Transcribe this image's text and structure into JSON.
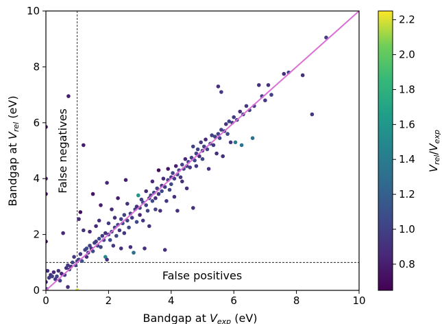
{
  "chart_data": {
    "type": "scatter",
    "xlabel": {
      "main": "Bandgap at ",
      "var": "V",
      "sub": "exp",
      "unit": " (eV)"
    },
    "ylabel": {
      "main": "Bandgap at ",
      "var": "V",
      "sub": "rel",
      "unit": " (eV)"
    },
    "xlim": [
      0,
      10
    ],
    "ylim": [
      0,
      10
    ],
    "xticks": [
      "0",
      "2",
      "4",
      "6",
      "8",
      "10"
    ],
    "yticks": [
      "0",
      "2",
      "4",
      "6",
      "8",
      "10"
    ],
    "grid": false,
    "reference_line": {
      "from": [
        0,
        0
      ],
      "to": [
        10,
        10
      ],
      "color": "#da70d6"
    },
    "threshold_x": 1,
    "threshold_y": 1,
    "annotations": {
      "false_negatives": "False negatives",
      "false_positives": "False positives"
    },
    "colorbar": {
      "label_var1": "V",
      "label_sub1": "rel",
      "label_sep": "/",
      "label_var2": "V",
      "label_sub2": "exp",
      "range": [
        0.65,
        2.25
      ],
      "ticks": [
        "0.8",
        "1.0",
        "1.2",
        "1.4",
        "1.6",
        "1.8",
        "2.0",
        "2.2"
      ],
      "colormap": "viridis"
    },
    "points": [
      [
        0.0,
        5.85,
        0.7
      ],
      [
        0.0,
        4.0,
        0.8
      ],
      [
        0.0,
        3.45,
        0.75
      ],
      [
        0.0,
        1.75,
        0.7
      ],
      [
        0.0,
        0.3,
        0.8
      ],
      [
        0.02,
        0.05,
        1.0
      ],
      [
        0.05,
        0.7,
        0.9
      ],
      [
        0.1,
        0.45,
        0.95
      ],
      [
        0.15,
        0.55,
        0.9
      ],
      [
        0.2,
        0.5,
        1.0
      ],
      [
        0.25,
        0.65,
        0.85
      ],
      [
        0.3,
        0.4,
        0.95
      ],
      [
        0.35,
        0.5,
        1.0
      ],
      [
        0.4,
        0.7,
        0.9
      ],
      [
        0.45,
        0.35,
        1.0
      ],
      [
        0.5,
        0.6,
        0.85
      ],
      [
        0.55,
        2.05,
        0.85
      ],
      [
        0.6,
        0.55,
        1.0
      ],
      [
        0.65,
        0.8,
        0.9
      ],
      [
        0.7,
        0.9,
        0.95
      ],
      [
        0.7,
        0.12,
        0.9
      ],
      [
        0.72,
        6.95,
        0.8
      ],
      [
        0.75,
        0.75,
        1.0
      ],
      [
        0.8,
        0.85,
        0.9
      ],
      [
        0.85,
        1.0,
        1.0
      ],
      [
        0.9,
        1.2,
        0.95
      ],
      [
        0.95,
        0.9,
        1.05
      ],
      [
        1.0,
        1.05,
        1.0
      ],
      [
        1.0,
        0.0,
        2.2
      ],
      [
        1.05,
        2.55,
        0.85
      ],
      [
        1.05,
        1.1,
        1.0
      ],
      [
        1.1,
        2.8,
        0.7
      ],
      [
        1.1,
        1.3,
        0.95
      ],
      [
        1.15,
        1.05,
        1.1
      ],
      [
        1.2,
        2.15,
        0.9
      ],
      [
        1.2,
        5.2,
        0.8
      ],
      [
        1.25,
        1.45,
        1.0
      ],
      [
        1.3,
        1.2,
        0.9
      ],
      [
        1.3,
        1.5,
        1.05
      ],
      [
        1.35,
        1.35,
        0.95
      ],
      [
        1.4,
        1.6,
        1.0
      ],
      [
        1.4,
        2.1,
        0.85
      ],
      [
        1.45,
        1.5,
        0.9
      ],
      [
        1.5,
        3.45,
        0.75
      ],
      [
        1.5,
        1.4,
        1.05
      ],
      [
        1.55,
        1.7,
        1.0
      ],
      [
        1.6,
        2.3,
        0.85
      ],
      [
        1.6,
        1.75,
        0.95
      ],
      [
        1.65,
        1.6,
        1.0
      ],
      [
        1.7,
        2.5,
        0.9
      ],
      [
        1.7,
        1.85,
        1.05
      ],
      [
        1.75,
        3.05,
        0.8
      ],
      [
        1.75,
        1.55,
        1.0
      ],
      [
        1.8,
        1.95,
        0.95
      ],
      [
        1.85,
        1.8,
        1.0
      ],
      [
        1.9,
        2.05,
        0.9
      ],
      [
        1.9,
        1.2,
        1.5
      ],
      [
        1.95,
        3.85,
        0.85
      ],
      [
        1.95,
        1.1,
        0.9
      ],
      [
        2.0,
        2.0,
        1.0
      ],
      [
        2.0,
        2.4,
        0.95
      ],
      [
        2.05,
        1.8,
        1.05
      ],
      [
        2.1,
        2.1,
        1.0
      ],
      [
        2.1,
        2.9,
        0.85
      ],
      [
        2.15,
        1.6,
        0.95
      ],
      [
        2.2,
        2.25,
        1.0
      ],
      [
        2.2,
        2.6,
        0.9
      ],
      [
        2.25,
        1.95,
        1.05
      ],
      [
        2.3,
        2.35,
        1.0
      ],
      [
        2.3,
        3.3,
        0.8
      ],
      [
        2.35,
        2.15,
        0.95
      ],
      [
        2.4,
        2.55,
        1.0
      ],
      [
        2.4,
        1.5,
        0.9
      ],
      [
        2.45,
        2.4,
        1.05
      ],
      [
        2.5,
        2.7,
        1.0
      ],
      [
        2.5,
        2.05,
        0.95
      ],
      [
        2.55,
        3.95,
        0.8
      ],
      [
        2.6,
        2.5,
        1.0
      ],
      [
        2.6,
        3.1,
        0.9
      ],
      [
        2.65,
        2.25,
        1.05
      ],
      [
        2.7,
        2.75,
        1.0
      ],
      [
        2.7,
        1.55,
        0.9
      ],
      [
        2.75,
        2.6,
        0.95
      ],
      [
        2.8,
        1.35,
        1.3
      ],
      [
        2.85,
        2.9,
        1.0
      ],
      [
        2.9,
        3.0,
        0.9
      ],
      [
        2.9,
        2.45,
        1.05
      ],
      [
        2.95,
        3.4,
        1.6
      ],
      [
        3.0,
        2.95,
        1.0
      ],
      [
        3.0,
        2.7,
        0.85
      ],
      [
        3.05,
        3.25,
        1.0
      ],
      [
        3.1,
        2.5,
        0.95
      ],
      [
        3.1,
        3.15,
        1.05
      ],
      [
        3.15,
        1.5,
        0.9
      ],
      [
        3.2,
        3.05,
        1.0
      ],
      [
        3.2,
        3.55,
        0.85
      ],
      [
        3.25,
        2.85,
        1.0
      ],
      [
        3.3,
        3.3,
        0.95
      ],
      [
        3.3,
        2.3,
        0.9
      ],
      [
        3.35,
        3.4,
        1.0
      ],
      [
        3.4,
        3.2,
        1.05
      ],
      [
        3.4,
        3.9,
        0.85
      ],
      [
        3.45,
        3.5,
        1.0
      ],
      [
        3.5,
        3.3,
        0.9
      ],
      [
        3.5,
        2.9,
        1.0
      ],
      [
        3.55,
        3.65,
        1.0
      ],
      [
        3.6,
        4.3,
        0.7
      ],
      [
        3.6,
        3.45,
        0.95
      ],
      [
        3.65,
        2.85,
        0.9
      ],
      [
        3.7,
        3.75,
        1.0
      ],
      [
        3.7,
        3.55,
        1.05
      ],
      [
        3.75,
        4.0,
        0.85
      ],
      [
        3.8,
        1.45,
        0.9
      ],
      [
        3.8,
        3.7,
        1.0
      ],
      [
        3.85,
        3.2,
        0.95
      ],
      [
        3.9,
        3.95,
        1.0
      ],
      [
        3.9,
        4.35,
        0.75
      ],
      [
        3.95,
        3.6,
        1.0
      ],
      [
        4.0,
        4.05,
        0.95
      ],
      [
        4.0,
        3.8,
        1.05
      ],
      [
        4.05,
        4.2,
        1.0
      ],
      [
        4.1,
        3.35,
        0.9
      ],
      [
        4.1,
        4.0,
        1.0
      ],
      [
        4.15,
        4.45,
        0.8
      ],
      [
        4.2,
        4.15,
        1.05
      ],
      [
        4.2,
        2.85,
        0.9
      ],
      [
        4.25,
        4.3,
        1.0
      ],
      [
        4.3,
        4.05,
        0.95
      ],
      [
        4.35,
        4.5,
        1.0
      ],
      [
        4.35,
        3.9,
        0.9
      ],
      [
        4.4,
        4.35,
        1.05
      ],
      [
        4.45,
        4.7,
        0.85
      ],
      [
        4.5,
        4.45,
        1.0
      ],
      [
        4.5,
        3.65,
        0.9
      ],
      [
        4.55,
        4.6,
        1.0
      ],
      [
        4.6,
        4.4,
        0.95
      ],
      [
        4.65,
        4.75,
        1.0
      ],
      [
        4.7,
        5.15,
        1.0
      ],
      [
        4.7,
        2.95,
        0.9
      ],
      [
        4.75,
        4.65,
        1.05
      ],
      [
        4.8,
        4.9,
        1.0
      ],
      [
        4.8,
        4.45,
        0.95
      ],
      [
        4.85,
        5.05,
        1.0
      ],
      [
        4.9,
        4.8,
        0.9
      ],
      [
        4.95,
        5.3,
        0.95
      ],
      [
        5.0,
        5.0,
        1.0
      ],
      [
        5.0,
        4.7,
        1.05
      ],
      [
        5.05,
        5.15,
        1.0
      ],
      [
        5.1,
        5.4,
        0.85
      ],
      [
        5.15,
        5.05,
        1.0
      ],
      [
        5.2,
        4.35,
        0.9
      ],
      [
        5.25,
        5.25,
        1.05
      ],
      [
        5.3,
        5.55,
        1.0
      ],
      [
        5.35,
        5.2,
        0.95
      ],
      [
        5.4,
        5.5,
        1.0
      ],
      [
        5.45,
        4.9,
        0.9
      ],
      [
        5.5,
        5.6,
        1.0
      ],
      [
        5.5,
        7.3,
        0.9
      ],
      [
        5.55,
        5.45,
        1.05
      ],
      [
        5.6,
        5.75,
        1.0
      ],
      [
        5.6,
        7.1,
        0.95
      ],
      [
        5.65,
        4.8,
        0.9
      ],
      [
        5.7,
        5.7,
        1.0
      ],
      [
        5.75,
        5.95,
        0.9
      ],
      [
        5.8,
        5.6,
        1.05
      ],
      [
        5.85,
        6.05,
        1.0
      ],
      [
        5.9,
        5.3,
        0.95
      ],
      [
        5.95,
        6.0,
        1.0
      ],
      [
        6.0,
        6.2,
        0.95
      ],
      [
        6.05,
        5.3,
        1.4
      ],
      [
        6.1,
        6.1,
        1.0
      ],
      [
        6.2,
        6.4,
        0.9
      ],
      [
        6.25,
        5.2,
        1.35
      ],
      [
        6.3,
        6.3,
        1.0
      ],
      [
        6.4,
        6.6,
        0.95
      ],
      [
        6.5,
        6.45,
        1.0
      ],
      [
        6.6,
        5.45,
        1.3
      ],
      [
        6.65,
        6.6,
        1.0
      ],
      [
        6.8,
        7.35,
        0.9
      ],
      [
        6.9,
        6.95,
        1.0
      ],
      [
        7.0,
        6.8,
        0.95
      ],
      [
        7.1,
        7.35,
        0.9
      ],
      [
        7.2,
        7.0,
        1.0
      ],
      [
        7.6,
        7.75,
        0.9
      ],
      [
        7.75,
        7.8,
        1.0
      ],
      [
        8.2,
        7.7,
        0.9
      ],
      [
        8.5,
        6.3,
        0.95
      ],
      [
        8.95,
        9.05,
        1.0
      ]
    ]
  }
}
